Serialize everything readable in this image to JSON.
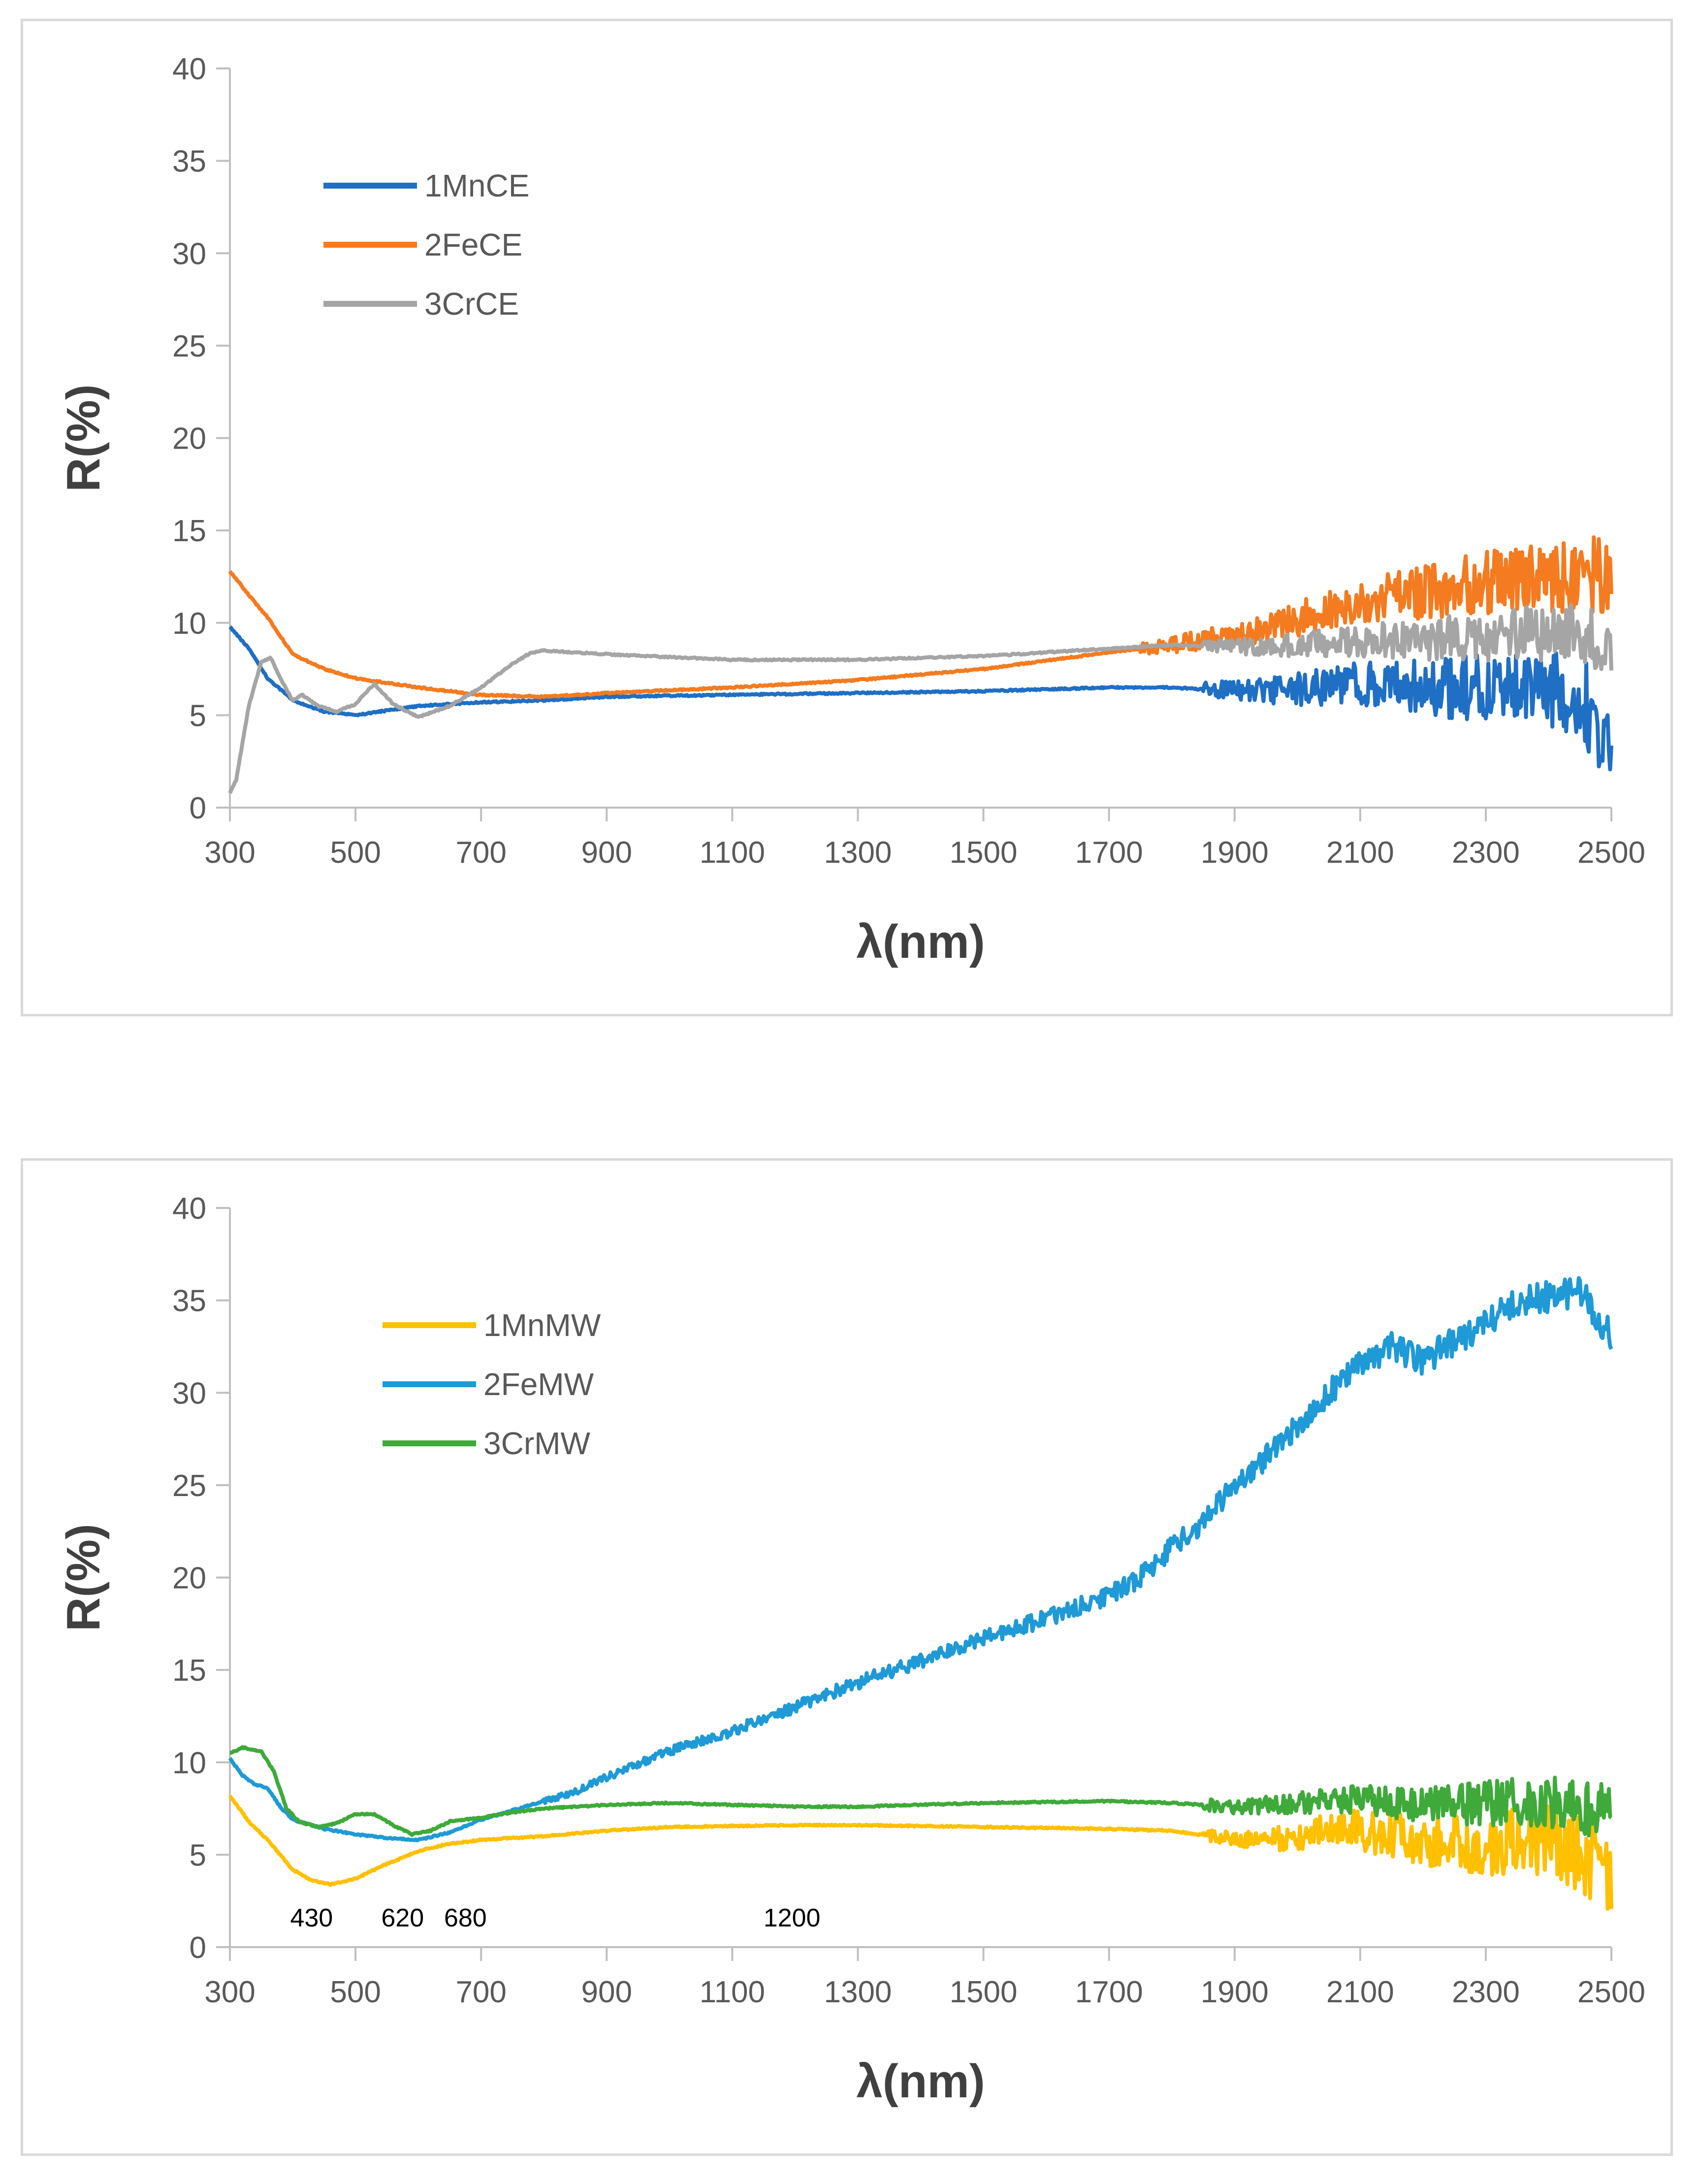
{
  "chart_data": [
    {
      "type": "line",
      "title": "",
      "xlabel": "λ(nm)",
      "ylabel": "R(%)",
      "xlim": [
        300,
        2500
      ],
      "ylim": [
        0,
        40
      ],
      "xticks": [
        "300",
        "500",
        "700",
        "900",
        "1100",
        "1300",
        "1500",
        "1700",
        "1900",
        "2100",
        "2300",
        "2500"
      ],
      "yticks": [
        "0",
        "5",
        "10",
        "15",
        "20",
        "25",
        "30",
        "35",
        "40"
      ],
      "grid": false,
      "legend_position": "top-left",
      "annotations": [],
      "series": [
        {
          "name": "1MnCE",
          "color": "#1f6fc5",
          "noise_start": 1850,
          "noise_amp": [
            0.4,
            2.5
          ],
          "x": [
            300,
            330,
            360,
            400,
            450,
            500,
            600,
            700,
            800,
            900,
            1100,
            1300,
            1500,
            1700,
            1800,
            1900,
            2000,
            2100,
            2200,
            2300,
            2400,
            2450,
            2480,
            2500
          ],
          "y": [
            9.8,
            8.6,
            7.0,
            5.8,
            5.2,
            5.0,
            5.5,
            5.7,
            5.8,
            6.0,
            6.1,
            6.2,
            6.3,
            6.5,
            6.5,
            6.3,
            6.4,
            6.7,
            6.5,
            6.5,
            6.4,
            6.0,
            4.5,
            4.0
          ]
        },
        {
          "name": "2FeCE",
          "color": "#f47b20",
          "noise_start": 1750,
          "noise_amp": [
            0.3,
            2.2
          ],
          "x": [
            300,
            330,
            360,
            400,
            450,
            500,
            600,
            700,
            800,
            900,
            1100,
            1300,
            1500,
            1700,
            1800,
            1900,
            2000,
            2100,
            2200,
            2300,
            2400,
            2450,
            2500
          ],
          "y": [
            12.8,
            11.5,
            10.3,
            8.3,
            7.5,
            7.0,
            6.5,
            6.1,
            6.0,
            6.2,
            6.5,
            6.9,
            7.5,
            8.4,
            8.8,
            9.4,
            10.2,
            11.2,
            11.6,
            12.2,
            12.5,
            12.5,
            12.8
          ]
        },
        {
          "name": "3CrCE",
          "color": "#a5a5a5",
          "noise_start": 1850,
          "noise_amp": [
            0.3,
            1.8
          ],
          "x": [
            300,
            310,
            330,
            350,
            365,
            380,
            400,
            415,
            440,
            470,
            500,
            530,
            560,
            600,
            650,
            700,
            750,
            780,
            800,
            900,
            1100,
            1300,
            1500,
            1700,
            1800,
            1900,
            2000,
            2100,
            2200,
            2300,
            2400,
            2450,
            2500
          ],
          "y": [
            0.8,
            1.5,
            5.5,
            7.9,
            8.1,
            7.0,
            5.8,
            6.1,
            5.5,
            5.2,
            5.6,
            6.7,
            5.6,
            4.9,
            5.5,
            6.5,
            7.8,
            8.4,
            8.5,
            8.3,
            8.0,
            8.0,
            8.2,
            8.6,
            8.8,
            8.7,
            8.8,
            9.0,
            9.1,
            9.3,
            9.5,
            9.3,
            9.0
          ]
        }
      ]
    },
    {
      "type": "line",
      "title": "",
      "xlabel": "λ(nm)",
      "ylabel": "R(%)",
      "xlim": [
        300,
        2500
      ],
      "ylim": [
        0,
        40
      ],
      "xticks": [
        "300",
        "500",
        "700",
        "900",
        "1100",
        "1300",
        "1500",
        "1700",
        "1900",
        "2100",
        "2300",
        "2500"
      ],
      "yticks": [
        "0",
        "5",
        "10",
        "15",
        "20",
        "25",
        "30",
        "35",
        "40"
      ],
      "grid": false,
      "legend_position": "top-left",
      "annotations": [
        {
          "text": "430",
          "x": 430,
          "y": 1.6
        },
        {
          "text": "620",
          "x": 575,
          "y": 1.6
        },
        {
          "text": "680",
          "x": 675,
          "y": 1.6
        },
        {
          "text": "1200",
          "x": 1195,
          "y": 1.6
        }
      ],
      "series": [
        {
          "name": "1MnMW",
          "color": "#ffc000",
          "noise_start": 1850,
          "noise_amp": [
            0.3,
            2.3
          ],
          "x": [
            300,
            330,
            360,
            400,
            430,
            460,
            500,
            550,
            600,
            650,
            700,
            800,
            900,
            1000,
            1200,
            1300,
            1500,
            1700,
            1800,
            1900,
            2000,
            2050,
            2100,
            2200,
            2300,
            2400,
            2450,
            2500
          ],
          "y": [
            8.2,
            6.8,
            5.8,
            4.2,
            3.6,
            3.4,
            3.7,
            4.5,
            5.2,
            5.6,
            5.8,
            6.0,
            6.3,
            6.5,
            6.6,
            6.6,
            6.5,
            6.4,
            6.3,
            5.8,
            5.9,
            6.6,
            6.3,
            5.8,
            5.6,
            5.7,
            5.0,
            4.2
          ]
        },
        {
          "name": "2FeMW",
          "color": "#1f9ad6",
          "noise_start": 800,
          "noise_amp": [
            0.15,
            0.9
          ],
          "x": [
            300,
            320,
            340,
            360,
            380,
            400,
            450,
            500,
            550,
            600,
            650,
            700,
            750,
            800,
            850,
            900,
            1000,
            1100,
            1200,
            1300,
            1400,
            1500,
            1600,
            1700,
            1750,
            1800,
            1850,
            1900,
            1950,
            2000,
            2050,
            2100,
            2150,
            2200,
            2250,
            2300,
            2350,
            2400,
            2450,
            2480,
            2500
          ],
          "y": [
            10.2,
            9.3,
            8.8,
            8.6,
            7.6,
            6.9,
            6.4,
            6.1,
            5.9,
            5.8,
            6.2,
            6.9,
            7.4,
            7.9,
            8.4,
            9.2,
            10.6,
            11.7,
            13.0,
            14.3,
            15.5,
            16.8,
            17.8,
            19.0,
            20.0,
            21.6,
            23.0,
            25.0,
            26.5,
            28.2,
            30.0,
            31.5,
            32.5,
            31.7,
            32.8,
            33.8,
            34.8,
            35.2,
            35.5,
            34.0,
            33.0
          ]
        },
        {
          "name": "3CrMW",
          "color": "#3faa3a",
          "noise_start": 1850,
          "noise_amp": [
            0.3,
            1.6
          ],
          "x": [
            300,
            320,
            350,
            370,
            390,
            410,
            440,
            470,
            500,
            530,
            560,
            590,
            620,
            650,
            700,
            750,
            800,
            900,
            1000,
            1100,
            1200,
            1300,
            1500,
            1700,
            1800,
            1900,
            2000,
            2100,
            2200,
            2300,
            2400,
            2450,
            2500
          ],
          "y": [
            10.5,
            10.8,
            10.6,
            9.5,
            7.5,
            6.8,
            6.5,
            6.7,
            7.2,
            7.2,
            6.6,
            6.1,
            6.3,
            6.8,
            7.0,
            7.3,
            7.5,
            7.7,
            7.8,
            7.7,
            7.6,
            7.6,
            7.8,
            7.9,
            7.8,
            7.6,
            7.8,
            8.0,
            7.7,
            7.8,
            7.9,
            7.6,
            7.4
          ]
        }
      ]
    }
  ]
}
